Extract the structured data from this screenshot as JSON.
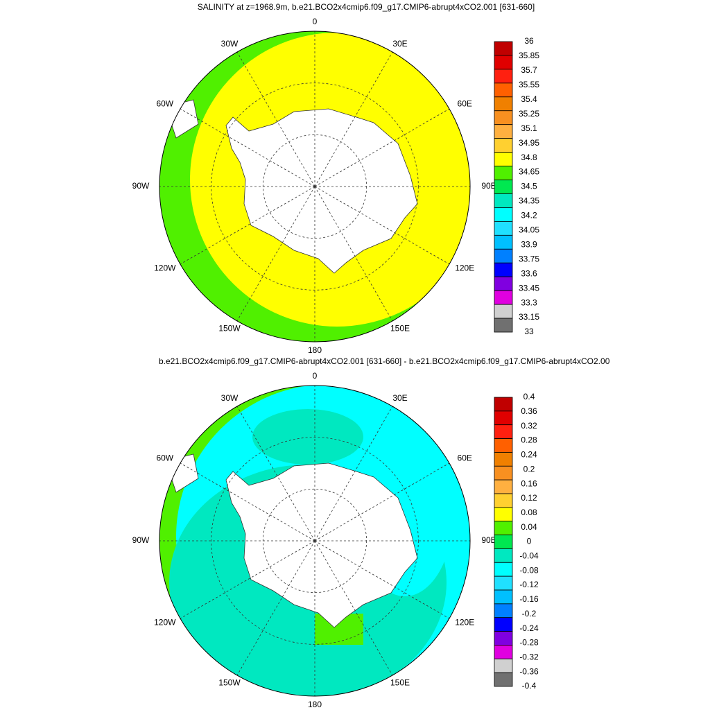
{
  "maps": [
    {
      "title": "SALINITY at z=1968.9m, b.e21.BCO2x4cmip6.f09_g17.CMIP6-abrupt4xCO2.001 [631-660]",
      "lon_labels": [
        "0",
        "30E",
        "60E",
        "90E",
        "120E",
        "150E",
        "180",
        "150W",
        "120W",
        "90W",
        "60W",
        "30W"
      ],
      "colorbar": {
        "labels": [
          36,
          35.85,
          35.7,
          35.55,
          35.4,
          35.25,
          35.1,
          34.95,
          34.8,
          34.65,
          34.5,
          34.35,
          34.2,
          34.05,
          33.9,
          33.75,
          33.6,
          33.45,
          33.3,
          33.15,
          33
        ],
        "colors": [
          "#c00000",
          "#e00000",
          "#ff2010",
          "#ff6000",
          "#f08000",
          "#f89020",
          "#ffb040",
          "#ffd030",
          "#ffff00",
          "#50f000",
          "#00e850",
          "#00e8c0",
          "#00ffff",
          "#20e0ff",
          "#00c0ff",
          "#0080ff",
          "#0000ff",
          "#8000e0",
          "#e000e0",
          "#d0d0d0",
          "#707070"
        ]
      }
    },
    {
      "title": "b.e21.BCO2x4cmip6.f09_g17.CMIP6-abrupt4xCO2.001 [631-660] - b.e21.BCO2x4cmip6.f09_g17.CMIP6-abrupt4xCO2.00",
      "lon_labels": [
        "0",
        "30E",
        "60E",
        "90E",
        "120E",
        "150E",
        "180",
        "150W",
        "120W",
        "90W",
        "60W",
        "30W"
      ],
      "colorbar": {
        "labels": [
          0.4,
          0.36,
          0.32,
          0.28,
          0.24,
          0.2,
          0.16,
          0.12,
          0.08,
          0.04,
          0,
          -0.04,
          -0.08,
          -0.12,
          -0.16,
          -0.2,
          -0.24,
          -0.28,
          -0.32,
          -0.36,
          -0.4
        ],
        "colors": [
          "#c00000",
          "#e00000",
          "#ff2010",
          "#ff6000",
          "#f08000",
          "#f89020",
          "#ffb040",
          "#ffd030",
          "#ffff00",
          "#50f000",
          "#00e850",
          "#00e8c0",
          "#00ffff",
          "#20e0ff",
          "#00c0ff",
          "#0080ff",
          "#0000ff",
          "#8000e0",
          "#e000e0",
          "#d0d0d0",
          "#707070"
        ]
      }
    }
  ]
}
